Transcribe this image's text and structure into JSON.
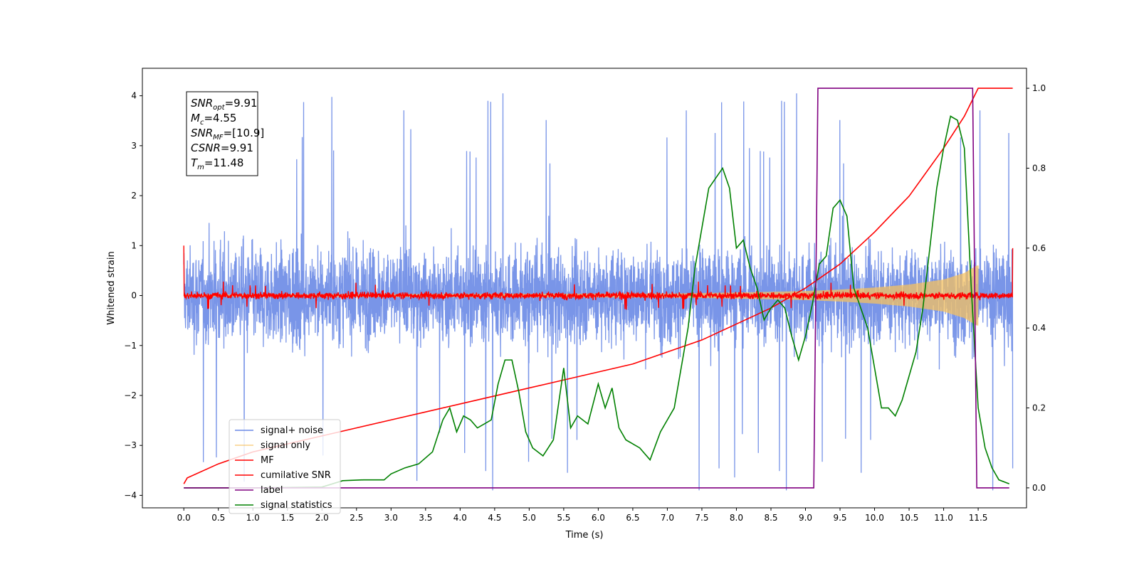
{
  "chart_data": {
    "type": "line",
    "xlabel": "Time (s)",
    "ylabel_left": "Whitened strain",
    "ylabel_right": "",
    "xlim": [
      -0.6,
      12.2
    ],
    "ylim_left": [
      -4.25,
      4.55
    ],
    "ylim_right": [
      -0.05,
      1.05
    ],
    "x_ticks": [
      0.0,
      0.5,
      1.0,
      1.5,
      2.0,
      2.5,
      3.0,
      3.5,
      4.0,
      4.5,
      5.0,
      5.5,
      6.0,
      6.5,
      7.0,
      7.5,
      8.0,
      8.5,
      9.0,
      9.5,
      10.0,
      10.5,
      11.0,
      11.5
    ],
    "x_tick_labels": [
      "0.0",
      "0.5",
      "1.0",
      "1.5",
      "2.0",
      "2.5",
      "3.0",
      "3.5",
      "4.0",
      "4.5",
      "5.0",
      "5.5",
      "6.0",
      "6.5",
      "7.0",
      "7.5",
      "8.0",
      "8.5",
      "9.0",
      "9.5",
      "10.0",
      "10.5",
      "11.0",
      "11.5"
    ],
    "y_left_ticks": [
      -4,
      -3,
      -2,
      -1,
      0,
      1,
      2,
      3,
      4
    ],
    "y_left_tick_labels": [
      "−4",
      "−3",
      "−2",
      "−1",
      "0",
      "1",
      "2",
      "3",
      "4"
    ],
    "y_right_ticks": [
      0.0,
      0.2,
      0.4,
      0.6,
      0.8,
      1.0
    ],
    "y_right_tick_labels": [
      "0.0",
      "0.2",
      "0.4",
      "0.6",
      "0.8",
      "1.0"
    ],
    "grid": false,
    "legend_placement": "lower-left",
    "annotation_box": {
      "lines": [
        {
          "main": "SNR",
          "sub": "opt",
          "value": "=9.91"
        },
        {
          "main": "M",
          "sub": "c",
          "value": "=4.55"
        },
        {
          "main": "SNR",
          "sub": "MF",
          "value": "=[10.9]"
        },
        {
          "main": "CSNR",
          "sub": "",
          "value": "=9.91"
        },
        {
          "main": "T",
          "sub": "m",
          "value": "=11.48"
        }
      ]
    },
    "series": [
      {
        "name": "signal+ noise",
        "color": "#6a89e6",
        "axis": "left",
        "style": "noise-band",
        "x_range": [
          0.0,
          12.0
        ],
        "amplitude_typical": 1.2,
        "amplitude_peak": 4.15
      },
      {
        "name": "signal only",
        "color": "#f5c260",
        "axis": "left",
        "style": "chirp",
        "x_range": [
          0.0,
          11.5
        ],
        "envelope_x": [
          0.0,
          7.0,
          8.0,
          9.0,
          9.5,
          10.0,
          10.5,
          11.0,
          11.3,
          11.48
        ],
        "envelope_y": [
          0.02,
          0.04,
          0.06,
          0.09,
          0.12,
          0.16,
          0.22,
          0.32,
          0.45,
          0.6
        ]
      },
      {
        "name": "MF",
        "color": "#ff0000",
        "axis": "left",
        "style": "noise-band",
        "x_range": [
          0.0,
          12.0
        ],
        "amplitude_typical": 0.08,
        "amplitude_peak": 0.3,
        "edge_values": [
          1.0,
          0.95
        ]
      },
      {
        "name": "cumilative SNR",
        "color": "#ff0000",
        "axis": "right",
        "x": [
          0.0,
          0.05,
          0.5,
          1.0,
          1.5,
          2.0,
          2.5,
          3.0,
          3.5,
          4.0,
          4.5,
          5.0,
          5.5,
          6.0,
          6.5,
          7.0,
          7.5,
          8.0,
          8.5,
          9.0,
          9.5,
          10.0,
          10.5,
          11.0,
          11.3,
          11.5,
          12.0
        ],
        "y": [
          0.01,
          0.025,
          0.06,
          0.09,
          0.11,
          0.13,
          0.15,
          0.17,
          0.19,
          0.21,
          0.23,
          0.25,
          0.27,
          0.29,
          0.31,
          0.34,
          0.37,
          0.41,
          0.45,
          0.5,
          0.56,
          0.64,
          0.73,
          0.85,
          0.93,
          1.0,
          1.0
        ]
      },
      {
        "name": "label",
        "color": "#800080",
        "axis": "right",
        "x": [
          0.0,
          9.12,
          9.18,
          11.42,
          11.48,
          11.95
        ],
        "y": [
          0.0,
          0.0,
          1.0,
          1.0,
          0.0,
          0.0
        ]
      },
      {
        "name": "signal statistics",
        "color": "#008000",
        "axis": "right",
        "x": [
          0.0,
          1.0,
          2.0,
          2.3,
          2.6,
          2.9,
          3.0,
          3.2,
          3.4,
          3.6,
          3.75,
          3.85,
          3.95,
          4.05,
          4.15,
          4.25,
          4.35,
          4.45,
          4.55,
          4.65,
          4.75,
          4.85,
          4.95,
          5.05,
          5.2,
          5.35,
          5.5,
          5.6,
          5.7,
          5.85,
          6.0,
          6.1,
          6.2,
          6.3,
          6.4,
          6.6,
          6.75,
          6.9,
          7.0,
          7.1,
          7.2,
          7.3,
          7.4,
          7.5,
          7.6,
          7.8,
          7.9,
          8.0,
          8.1,
          8.2,
          8.3,
          8.4,
          8.5,
          8.6,
          8.7,
          8.8,
          8.9,
          9.0,
          9.1,
          9.2,
          9.3,
          9.4,
          9.5,
          9.6,
          9.7,
          9.8,
          9.9,
          10.0,
          10.1,
          10.2,
          10.3,
          10.4,
          10.5,
          10.6,
          10.7,
          10.8,
          10.9,
          11.0,
          11.1,
          11.2,
          11.3,
          11.4,
          11.5,
          11.6,
          11.7,
          11.8,
          11.95
        ],
        "y": [
          0.0,
          0.0,
          0.002,
          0.018,
          0.02,
          0.02,
          0.035,
          0.05,
          0.06,
          0.09,
          0.17,
          0.2,
          0.14,
          0.18,
          0.17,
          0.15,
          0.16,
          0.17,
          0.26,
          0.32,
          0.32,
          0.24,
          0.14,
          0.1,
          0.08,
          0.12,
          0.3,
          0.15,
          0.18,
          0.16,
          0.26,
          0.2,
          0.25,
          0.15,
          0.12,
          0.1,
          0.07,
          0.14,
          0.17,
          0.2,
          0.3,
          0.4,
          0.55,
          0.65,
          0.75,
          0.8,
          0.75,
          0.6,
          0.62,
          0.55,
          0.5,
          0.42,
          0.45,
          0.47,
          0.45,
          0.38,
          0.32,
          0.38,
          0.46,
          0.56,
          0.58,
          0.7,
          0.72,
          0.68,
          0.5,
          0.45,
          0.4,
          0.3,
          0.2,
          0.2,
          0.18,
          0.22,
          0.28,
          0.34,
          0.45,
          0.6,
          0.75,
          0.85,
          0.93,
          0.92,
          0.85,
          0.5,
          0.2,
          0.1,
          0.05,
          0.02,
          0.01
        ]
      }
    ]
  }
}
